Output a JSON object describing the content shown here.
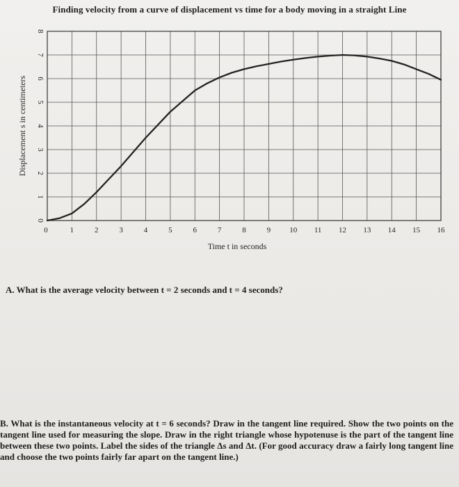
{
  "chart_data": {
    "type": "line",
    "title": "Finding velocity from a curve of displacement vs time for a body moving in a straight Line",
    "xlabel": "Time t in seconds",
    "ylabel": "Displacement s in centimeters",
    "xlim": [
      0,
      16
    ],
    "ylim": [
      0,
      8
    ],
    "xticks": [
      "0",
      "1",
      "2",
      "3",
      "4",
      "5",
      "6",
      "7",
      "8",
      "9",
      "10",
      "11",
      "12",
      "13",
      "14",
      "15",
      "16"
    ],
    "yticks": [
      "0",
      "1",
      "2",
      "3",
      "4",
      "5",
      "6",
      "7",
      "8"
    ],
    "grid": true,
    "series": [
      {
        "x": [
          0,
          0.5,
          1,
          1.5,
          2,
          2.5,
          3,
          3.5,
          4,
          4.5,
          5,
          5.5,
          6,
          6.5,
          7,
          7.5,
          8,
          8.5,
          9,
          9.5,
          10,
          10.5,
          11,
          11.5,
          12,
          12.5,
          13,
          13.5,
          14,
          14.5,
          15,
          15.5,
          16
        ],
        "y": [
          0,
          0.1,
          0.3,
          0.7,
          1.2,
          1.75,
          2.3,
          2.9,
          3.5,
          4.05,
          4.6,
          5.05,
          5.5,
          5.8,
          6.05,
          6.25,
          6.4,
          6.52,
          6.62,
          6.72,
          6.8,
          6.87,
          6.93,
          6.97,
          7.0,
          6.98,
          6.93,
          6.85,
          6.75,
          6.6,
          6.4,
          6.2,
          5.95
        ]
      }
    ]
  },
  "questions": {
    "a": "A.  What is the average velocity between t = 2 seconds and t = 4 seconds?",
    "b": "B.  What is the instantaneous velocity at t = 6 seconds? Draw in the tangent line required.  Show the two points on the tangent line used for measuring the slope.  Draw in the right triangle whose hypotenuse is the part of the tangent line between these two points.  Label the sides of the triangle Δs and Δt.  (For good accuracy draw a fairly long tangent line and choose the two points fairly far apart on the tangent line.)"
  }
}
